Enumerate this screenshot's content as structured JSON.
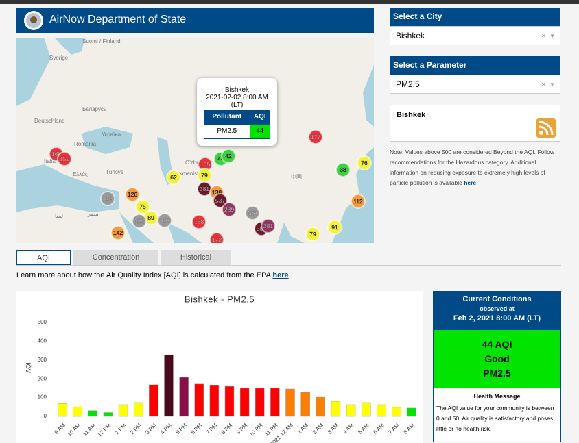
{
  "header": {
    "title": "AirNow Department of State"
  },
  "map": {
    "labels": [
      "Suomi / Finland",
      "Sverige",
      "Беларусь",
      "Deutschland",
      "Україна",
      "România",
      "Italia",
      "Ελλάς",
      "Türkiye",
      "O'zbekiston",
      "Turkmenistan",
      "中国",
      "ليبيا",
      "مصر"
    ],
    "markers": [
      160,
      159,
      155,
      44,
      42,
      79,
      62,
      177,
      38,
      76,
      381,
      138,
      537,
      126,
      "N/A",
      75,
      112,
      289,
      "N/A",
      89,
      "N/A",
      "N/A",
      168,
      381,
      281,
      91,
      142,
      79,
      172
    ],
    "tooltip": {
      "city": "Bishkek",
      "time": "2021-02-02 8:00 AM",
      "zone": "(LT)",
      "headers": [
        "Pollutant",
        "AQI"
      ],
      "pollutant": "PM2.5",
      "aqi": 44
    }
  },
  "sidebar": {
    "city_title": "Select a City",
    "city": "Bishkek",
    "clear": "×",
    "param_title": "Select a Parameter",
    "param": "PM2.5",
    "feed_title": "Bishkek",
    "note": "Note: Values above 500 are considered Beyond the AQI. Follow recommendations for the Hazardous category. Additional information on reducing exposure to extremely high levels of particle pollution is available ",
    "note_link": "here",
    "note_end": "."
  },
  "tabs": [
    "AQI",
    "Concentration",
    "Historical"
  ],
  "learn": {
    "text": "Learn more about how the Air Quality Index [AQI] is calculated from the EPA ",
    "link": "here",
    "end": "."
  },
  "conditions": {
    "title": "Current Conditions",
    "observed": "observed at",
    "time": "Feb 2, 2021 8:00 AM (LT)",
    "aqi": "44 AQI",
    "category": "Good",
    "pollutant": "PM2.5",
    "health_title": "Health Message",
    "health_text": "The AQI value for your community is between 0 and 50. Air quality is satisfactory and poses little or no health risk."
  },
  "chart_data": {
    "type": "bar",
    "title": "Bishkek - PM2.5",
    "y_label": "AQI",
    "categories": [
      "9 AM",
      "10 AM",
      "11 AM",
      "12 PM",
      "1 PM",
      "2 PM",
      "3 PM",
      "4 PM",
      "5 PM",
      "6 PM",
      "7 PM",
      "8 PM",
      "9 PM",
      "10 PM",
      "11 PM",
      "2021 12 AM",
      "1 AM",
      "2 AM",
      "3 AM",
      "4 AM",
      "5 AM",
      "6 AM",
      "7 AM",
      "8 AM"
    ],
    "values": [
      68,
      50,
      30,
      20,
      62,
      73,
      168,
      328,
      208,
      172,
      164,
      160,
      150,
      150,
      150,
      146,
      128,
      102,
      80,
      62,
      73,
      62,
      48,
      44
    ],
    "colors": [
      "#ffff00",
      "#ffff00",
      "#00e400",
      "#00e400",
      "#ffff00",
      "#ffff00",
      "#ff0000",
      "#4a0a1e",
      "#8a0f48",
      "#ff0000",
      "#ff0000",
      "#ff0000",
      "#ff0000",
      "#ff0000",
      "#ff0000",
      "#ff7e00",
      "#ff7e00",
      "#ff7e00",
      "#ffff00",
      "#ffff00",
      "#ffff00",
      "#ffff00",
      "#ffff00",
      "#00e400"
    ],
    "ylim": [
      0,
      500
    ],
    "yticks": [
      0,
      100,
      200,
      300,
      400,
      500
    ],
    "grid": false
  }
}
